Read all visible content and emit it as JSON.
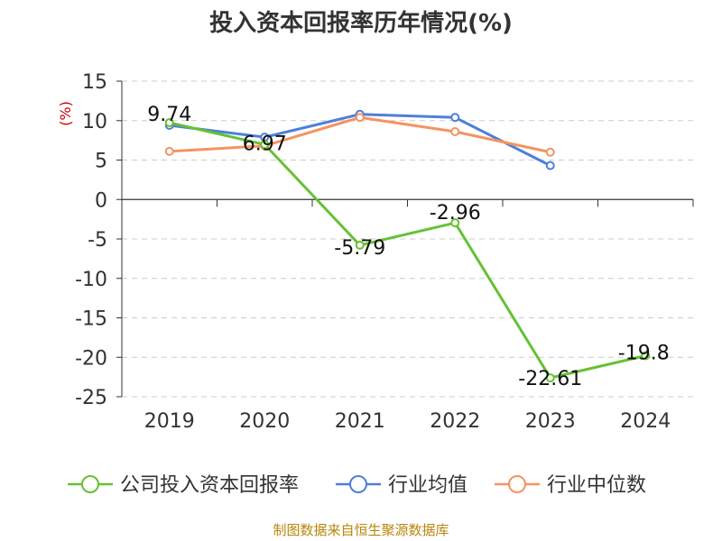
{
  "chart_data": {
    "type": "line",
    "title": "投入资本回报率历年情况(%)",
    "ylabel": "(%)",
    "xlabel": "",
    "categories": [
      "2019",
      "2020",
      "2021",
      "2022",
      "2023",
      "2024"
    ],
    "ylim": [
      -25,
      15
    ],
    "yticks": [
      15,
      10,
      5,
      0,
      -5,
      -10,
      -15,
      -20,
      -25
    ],
    "grid": true,
    "legend_position": "bottom",
    "series": [
      {
        "name": "公司投入资本回报率",
        "color": "#66c133",
        "values": [
          9.74,
          6.97,
          -5.79,
          -2.96,
          -22.61,
          -19.8
        ],
        "labels": [
          "9.74",
          "6.97",
          "-5.79",
          "-2.96",
          "-22.61",
          "-19.8"
        ]
      },
      {
        "name": "行业均值",
        "color": "#4e7fd9",
        "values": [
          9.4,
          7.9,
          10.8,
          10.4,
          4.3,
          null
        ]
      },
      {
        "name": "行业中位数",
        "color": "#f59361",
        "values": [
          6.1,
          6.8,
          10.4,
          8.6,
          6.0,
          null
        ]
      }
    ]
  },
  "source": "制图数据来自恒生聚源数据库"
}
